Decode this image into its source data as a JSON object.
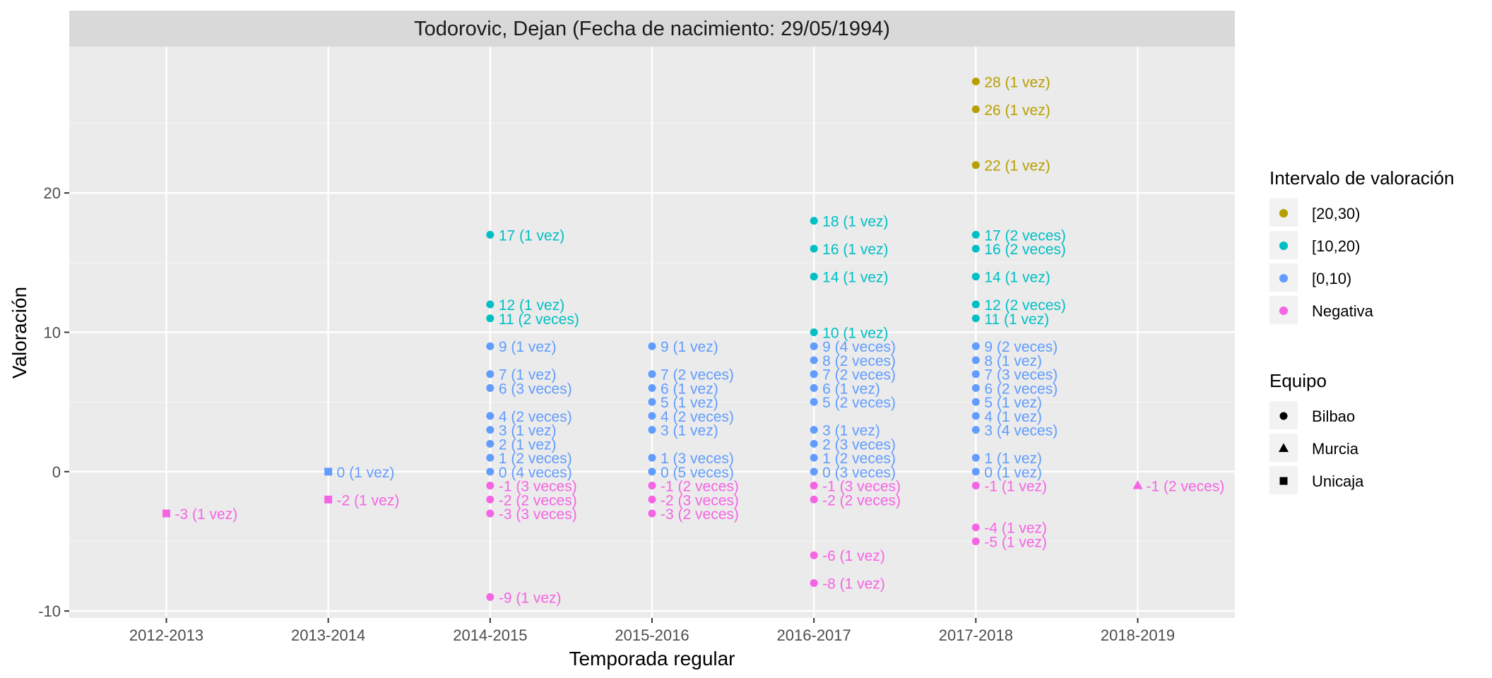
{
  "chart_data": {
    "type": "scatter",
    "title": "Todorovic, Dejan (Fecha de nacimiento: 29/05/1994)",
    "xlabel": "Temporada regular",
    "ylabel": "Valoración",
    "categories": [
      "2012-2013",
      "2013-2014",
      "2014-2015",
      "2015-2016",
      "2016-2017",
      "2017-2018",
      "2018-2019"
    ],
    "ylim": [
      -10.5,
      30.5
    ],
    "yticks": [
      -10,
      0,
      10,
      20
    ],
    "grid": true,
    "legend_position": "right",
    "legend_color": {
      "title": "Intervalo de valoración",
      "entries": [
        {
          "label": "[20,30)",
          "color": "#b79f00"
        },
        {
          "label": "[10,20)",
          "color": "#00bfc4"
        },
        {
          "label": "[0,10)",
          "color": "#619cff"
        },
        {
          "label": "Negativa",
          "color": "#f564e3"
        }
      ]
    },
    "legend_shape": {
      "title": "Equipo",
      "entries": [
        {
          "label": "Bilbao",
          "shape": "circle"
        },
        {
          "label": "Murcia",
          "shape": "triangle"
        },
        {
          "label": "Unicaja",
          "shape": "square"
        }
      ]
    },
    "points": [
      {
        "season": "2012-2013",
        "y": -3,
        "team": "Unicaja",
        "interval": "Negativa",
        "label": "-3 (1 vez)"
      },
      {
        "season": "2013-2014",
        "y": 0,
        "team": "Unicaja",
        "interval": "[0,10)",
        "label": "0 (1 vez)"
      },
      {
        "season": "2013-2014",
        "y": -2,
        "team": "Unicaja",
        "interval": "Negativa",
        "label": "-2 (1 vez)"
      },
      {
        "season": "2014-2015",
        "y": 17,
        "team": "Bilbao",
        "interval": "[10,20)",
        "label": "17 (1 vez)"
      },
      {
        "season": "2014-2015",
        "y": 12,
        "team": "Bilbao",
        "interval": "[10,20)",
        "label": "12 (1 vez)"
      },
      {
        "season": "2014-2015",
        "y": 11,
        "team": "Bilbao",
        "interval": "[10,20)",
        "label": "11 (2 veces)"
      },
      {
        "season": "2014-2015",
        "y": 9,
        "team": "Bilbao",
        "interval": "[0,10)",
        "label": "9 (1 vez)"
      },
      {
        "season": "2014-2015",
        "y": 7,
        "team": "Bilbao",
        "interval": "[0,10)",
        "label": "7 (1 vez)"
      },
      {
        "season": "2014-2015",
        "y": 6,
        "team": "Bilbao",
        "interval": "[0,10)",
        "label": "6 (3 veces)"
      },
      {
        "season": "2014-2015",
        "y": 4,
        "team": "Bilbao",
        "interval": "[0,10)",
        "label": "4 (2 veces)"
      },
      {
        "season": "2014-2015",
        "y": 3,
        "team": "Bilbao",
        "interval": "[0,10)",
        "label": "3 (1 vez)"
      },
      {
        "season": "2014-2015",
        "y": 2,
        "team": "Bilbao",
        "interval": "[0,10)",
        "label": "2 (1 vez)"
      },
      {
        "season": "2014-2015",
        "y": 1,
        "team": "Bilbao",
        "interval": "[0,10)",
        "label": "1 (2 veces)"
      },
      {
        "season": "2014-2015",
        "y": 0,
        "team": "Bilbao",
        "interval": "[0,10)",
        "label": "0 (4 veces)"
      },
      {
        "season": "2014-2015",
        "y": -1,
        "team": "Bilbao",
        "interval": "Negativa",
        "label": "-1 (3 veces)"
      },
      {
        "season": "2014-2015",
        "y": -2,
        "team": "Bilbao",
        "interval": "Negativa",
        "label": "-2 (2 veces)"
      },
      {
        "season": "2014-2015",
        "y": -3,
        "team": "Bilbao",
        "interval": "Negativa",
        "label": "-3 (3 veces)"
      },
      {
        "season": "2014-2015",
        "y": -9,
        "team": "Bilbao",
        "interval": "Negativa",
        "label": "-9 (1 vez)"
      },
      {
        "season": "2015-2016",
        "y": 9,
        "team": "Bilbao",
        "interval": "[0,10)",
        "label": "9 (1 vez)"
      },
      {
        "season": "2015-2016",
        "y": 7,
        "team": "Bilbao",
        "interval": "[0,10)",
        "label": "7 (2 veces)"
      },
      {
        "season": "2015-2016",
        "y": 6,
        "team": "Bilbao",
        "interval": "[0,10)",
        "label": "6 (1 vez)"
      },
      {
        "season": "2015-2016",
        "y": 5,
        "team": "Bilbao",
        "interval": "[0,10)",
        "label": "5 (1 vez)"
      },
      {
        "season": "2015-2016",
        "y": 4,
        "team": "Bilbao",
        "interval": "[0,10)",
        "label": "4 (2 veces)"
      },
      {
        "season": "2015-2016",
        "y": 3,
        "team": "Bilbao",
        "interval": "[0,10)",
        "label": "3 (1 vez)"
      },
      {
        "season": "2015-2016",
        "y": 1,
        "team": "Bilbao",
        "interval": "[0,10)",
        "label": "1 (3 veces)"
      },
      {
        "season": "2015-2016",
        "y": 0,
        "team": "Bilbao",
        "interval": "[0,10)",
        "label": "0 (5 veces)"
      },
      {
        "season": "2015-2016",
        "y": -1,
        "team": "Bilbao",
        "interval": "Negativa",
        "label": "-1 (2 veces)"
      },
      {
        "season": "2015-2016",
        "y": -2,
        "team": "Bilbao",
        "interval": "Negativa",
        "label": "-2 (3 veces)"
      },
      {
        "season": "2015-2016",
        "y": -3,
        "team": "Bilbao",
        "interval": "Negativa",
        "label": "-3 (2 veces)"
      },
      {
        "season": "2016-2017",
        "y": 18,
        "team": "Bilbao",
        "interval": "[10,20)",
        "label": "18 (1 vez)"
      },
      {
        "season": "2016-2017",
        "y": 16,
        "team": "Bilbao",
        "interval": "[10,20)",
        "label": "16 (1 vez)"
      },
      {
        "season": "2016-2017",
        "y": 14,
        "team": "Bilbao",
        "interval": "[10,20)",
        "label": "14 (1 vez)"
      },
      {
        "season": "2016-2017",
        "y": 10,
        "team": "Bilbao",
        "interval": "[10,20)",
        "label": "10 (1 vez)"
      },
      {
        "season": "2016-2017",
        "y": 9,
        "team": "Bilbao",
        "interval": "[0,10)",
        "label": "9 (4 veces)"
      },
      {
        "season": "2016-2017",
        "y": 8,
        "team": "Bilbao",
        "interval": "[0,10)",
        "label": "8 (2 veces)"
      },
      {
        "season": "2016-2017",
        "y": 7,
        "team": "Bilbao",
        "interval": "[0,10)",
        "label": "7 (2 veces)"
      },
      {
        "season": "2016-2017",
        "y": 6,
        "team": "Bilbao",
        "interval": "[0,10)",
        "label": "6 (1 vez)"
      },
      {
        "season": "2016-2017",
        "y": 5,
        "team": "Bilbao",
        "interval": "[0,10)",
        "label": "5 (2 veces)"
      },
      {
        "season": "2016-2017",
        "y": 3,
        "team": "Bilbao",
        "interval": "[0,10)",
        "label": "3 (1 vez)"
      },
      {
        "season": "2016-2017",
        "y": 2,
        "team": "Bilbao",
        "interval": "[0,10)",
        "label": "2 (3 veces)"
      },
      {
        "season": "2016-2017",
        "y": 1,
        "team": "Bilbao",
        "interval": "[0,10)",
        "label": "1 (2 veces)"
      },
      {
        "season": "2016-2017",
        "y": 0,
        "team": "Bilbao",
        "interval": "[0,10)",
        "label": "0 (3 veces)"
      },
      {
        "season": "2016-2017",
        "y": -1,
        "team": "Bilbao",
        "interval": "Negativa",
        "label": "-1 (3 veces)"
      },
      {
        "season": "2016-2017",
        "y": -2,
        "team": "Bilbao",
        "interval": "Negativa",
        "label": "-2 (2 veces)"
      },
      {
        "season": "2016-2017",
        "y": -6,
        "team": "Bilbao",
        "interval": "Negativa",
        "label": "-6 (1 vez)"
      },
      {
        "season": "2016-2017",
        "y": -8,
        "team": "Bilbao",
        "interval": "Negativa",
        "label": "-8 (1 vez)"
      },
      {
        "season": "2017-2018",
        "y": 28,
        "team": "Bilbao",
        "interval": "[20,30)",
        "label": "28 (1 vez)"
      },
      {
        "season": "2017-2018",
        "y": 26,
        "team": "Bilbao",
        "interval": "[20,30)",
        "label": "26 (1 vez)"
      },
      {
        "season": "2017-2018",
        "y": 22,
        "team": "Bilbao",
        "interval": "[20,30)",
        "label": "22 (1 vez)"
      },
      {
        "season": "2017-2018",
        "y": 17,
        "team": "Bilbao",
        "interval": "[10,20)",
        "label": "17 (2 veces)"
      },
      {
        "season": "2017-2018",
        "y": 16,
        "team": "Bilbao",
        "interval": "[10,20)",
        "label": "16 (2 veces)"
      },
      {
        "season": "2017-2018",
        "y": 14,
        "team": "Bilbao",
        "interval": "[10,20)",
        "label": "14 (1 vez)"
      },
      {
        "season": "2017-2018",
        "y": 12,
        "team": "Bilbao",
        "interval": "[10,20)",
        "label": "12 (2 veces)"
      },
      {
        "season": "2017-2018",
        "y": 11,
        "team": "Bilbao",
        "interval": "[10,20)",
        "label": "11 (1 vez)"
      },
      {
        "season": "2017-2018",
        "y": 9,
        "team": "Bilbao",
        "interval": "[0,10)",
        "label": "9 (2 veces)"
      },
      {
        "season": "2017-2018",
        "y": 8,
        "team": "Bilbao",
        "interval": "[0,10)",
        "label": "8 (1 vez)"
      },
      {
        "season": "2017-2018",
        "y": 7,
        "team": "Bilbao",
        "interval": "[0,10)",
        "label": "7 (3 veces)"
      },
      {
        "season": "2017-2018",
        "y": 6,
        "team": "Bilbao",
        "interval": "[0,10)",
        "label": "6 (2 veces)"
      },
      {
        "season": "2017-2018",
        "y": 5,
        "team": "Bilbao",
        "interval": "[0,10)",
        "label": "5 (1 vez)"
      },
      {
        "season": "2017-2018",
        "y": 4,
        "team": "Bilbao",
        "interval": "[0,10)",
        "label": "4 (1 vez)"
      },
      {
        "season": "2017-2018",
        "y": 3,
        "team": "Bilbao",
        "interval": "[0,10)",
        "label": "3 (4 veces)"
      },
      {
        "season": "2017-2018",
        "y": 1,
        "team": "Bilbao",
        "interval": "[0,10)",
        "label": "1 (1 vez)"
      },
      {
        "season": "2017-2018",
        "y": 0,
        "team": "Bilbao",
        "interval": "[0,10)",
        "label": "0 (1 vez)"
      },
      {
        "season": "2017-2018",
        "y": -1,
        "team": "Bilbao",
        "interval": "Negativa",
        "label": "-1 (1 vez)"
      },
      {
        "season": "2017-2018",
        "y": -4,
        "team": "Bilbao",
        "interval": "Negativa",
        "label": "-4 (1 vez)"
      },
      {
        "season": "2017-2018",
        "y": -5,
        "team": "Bilbao",
        "interval": "Negativa",
        "label": "-5 (1 vez)"
      },
      {
        "season": "2018-2019",
        "y": -1,
        "team": "Murcia",
        "interval": "Negativa",
        "label": "-1 (2 veces)"
      }
    ]
  }
}
